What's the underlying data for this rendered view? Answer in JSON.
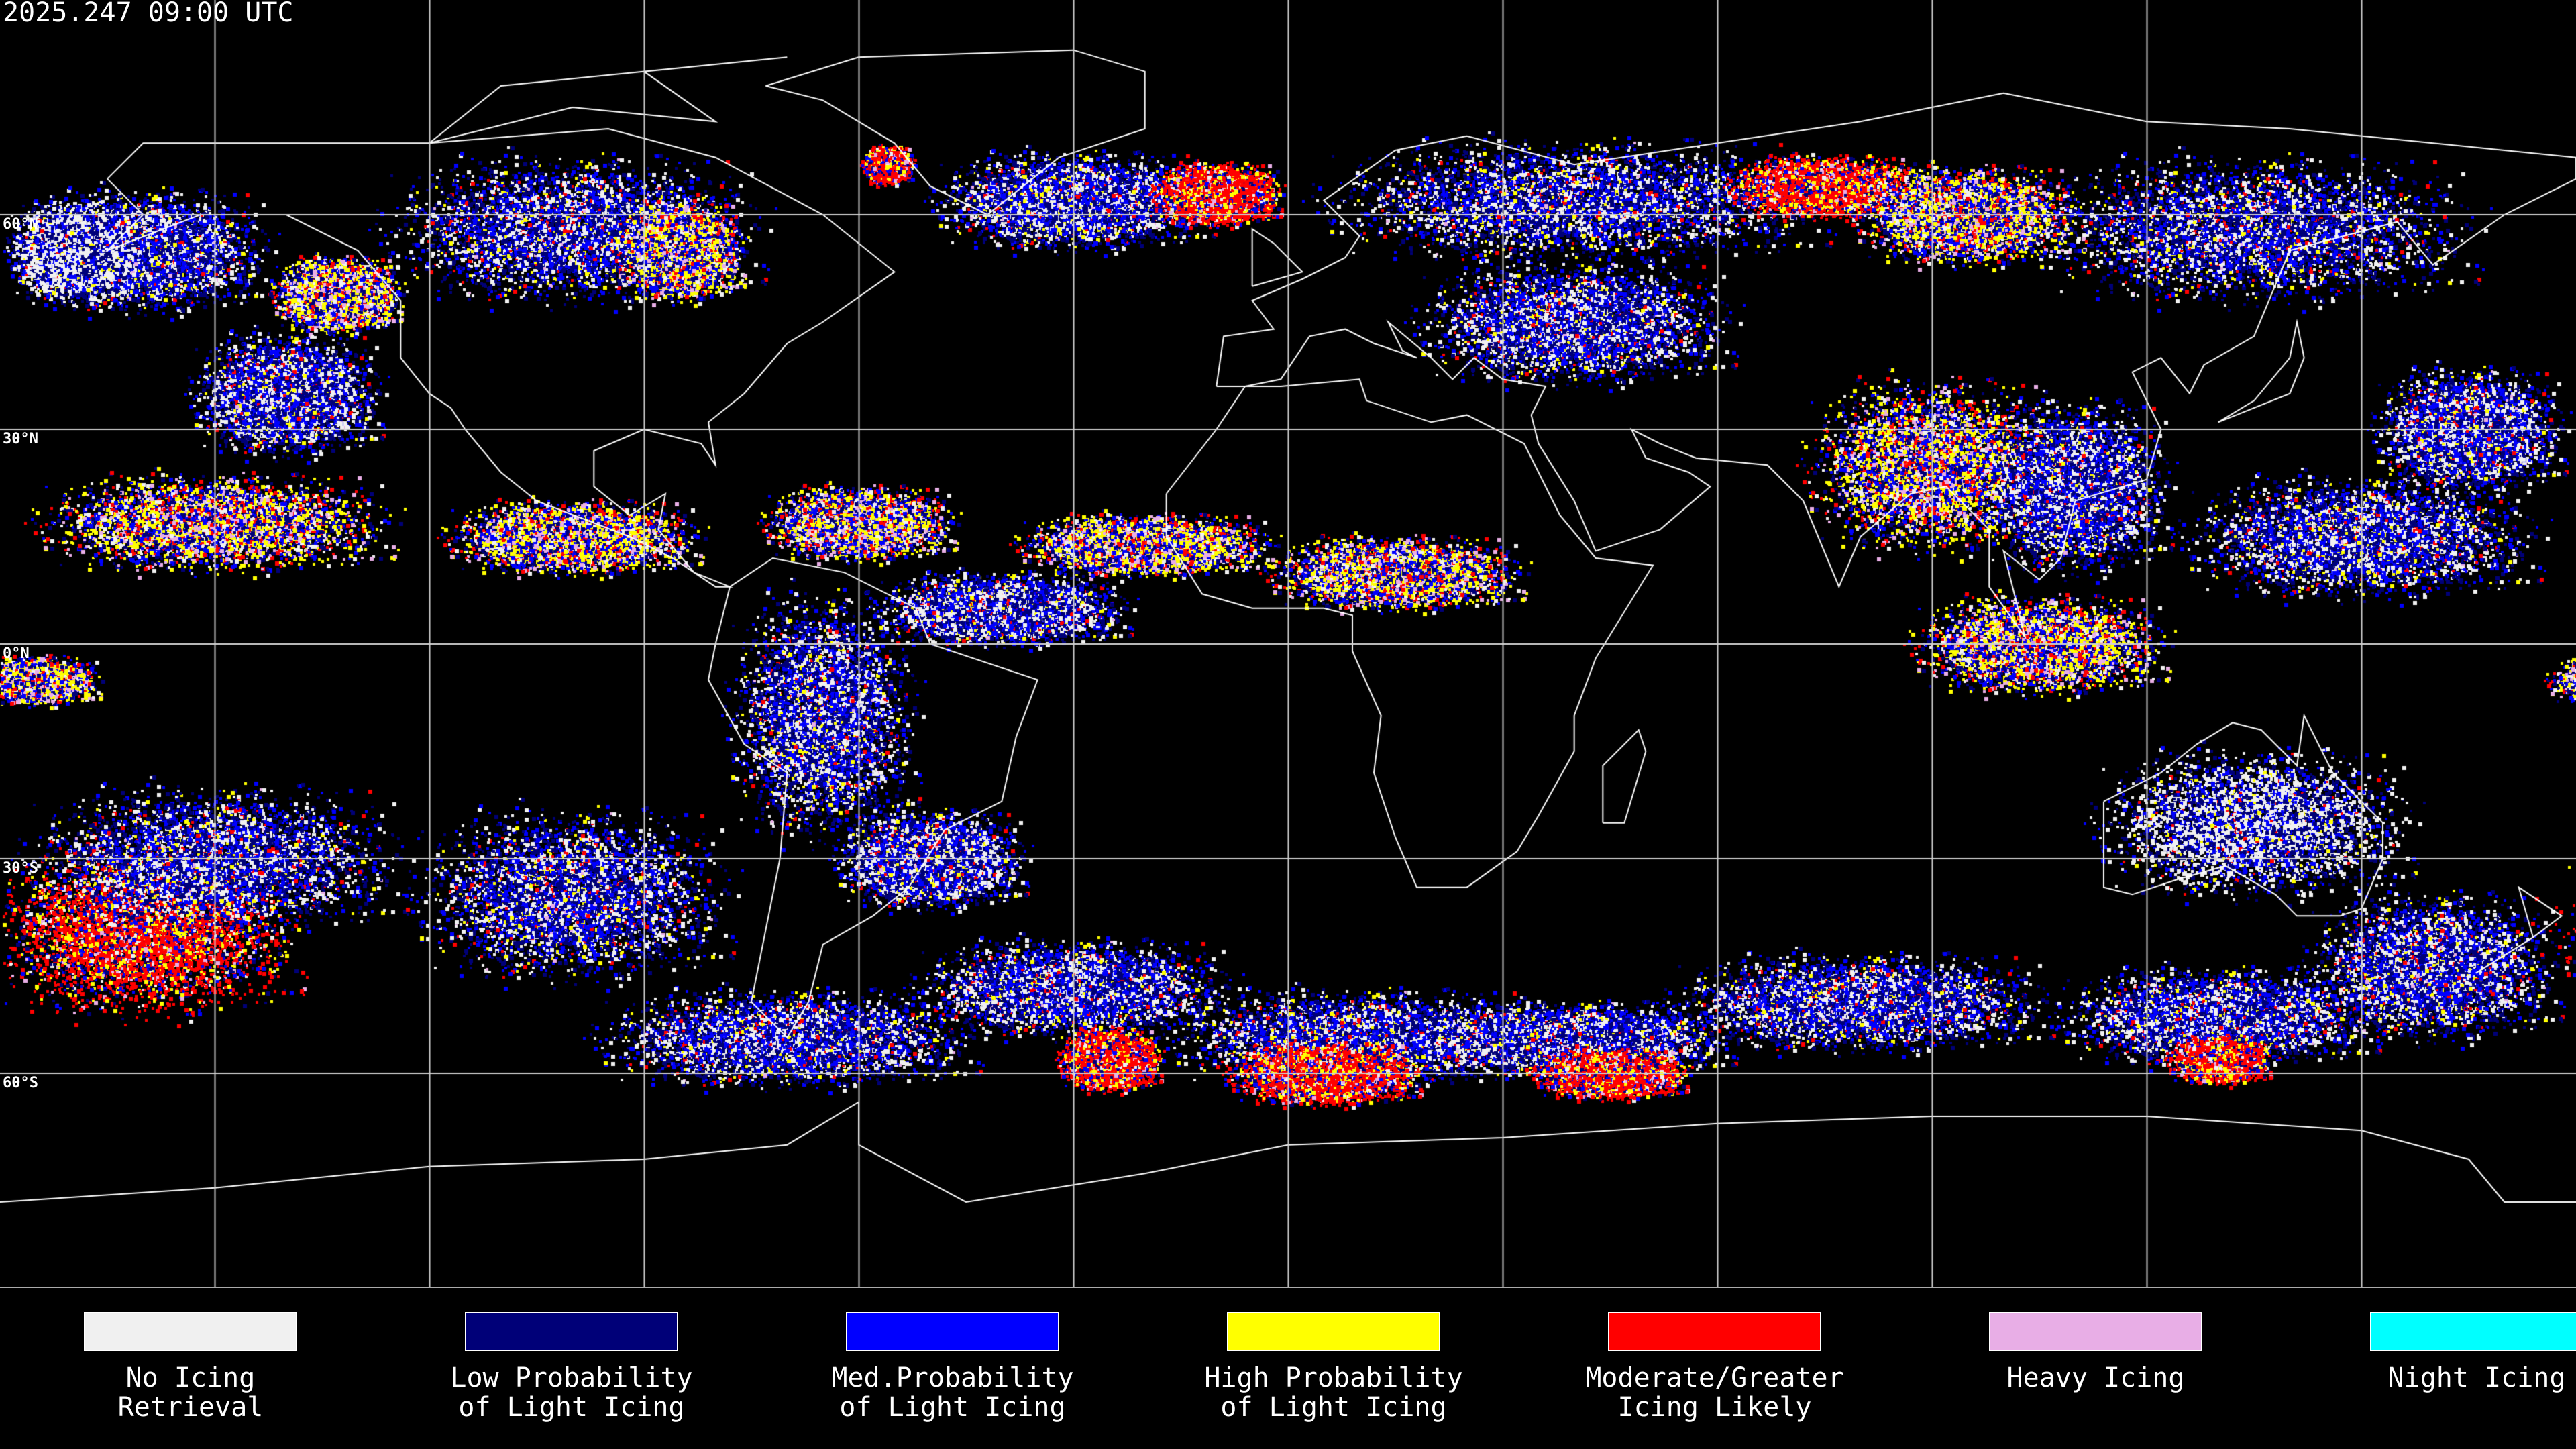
{
  "header": {
    "timestamp": "2025.247 09:00 UTC"
  },
  "latitude_labels": [
    "60°N",
    "30°N",
    "0°N",
    "30°S",
    "60°S"
  ],
  "legend": [
    {
      "label": "No Icing\nRetrieval",
      "color": "#f0f0f0"
    },
    {
      "label": "Low Probability\nof Light Icing",
      "color": "#000078"
    },
    {
      "label": "Med.Probability\nof Light Icing",
      "color": "#0000ff"
    },
    {
      "label": "High Probability\nof Light Icing",
      "color": "#ffff00"
    },
    {
      "label": "Moderate/Greater\nIcing Likely",
      "color": "#ff0000"
    },
    {
      "label": "Heavy Icing",
      "color": "#e8aee6"
    },
    {
      "label": "Night Icing",
      "color": "#00ffff"
    }
  ],
  "map": {
    "background": "#000000",
    "coastline_color": "#ffffff",
    "grid_color": "#d0d0d0",
    "projection": "equirectangular",
    "grid_spacing_degrees": 30
  }
}
